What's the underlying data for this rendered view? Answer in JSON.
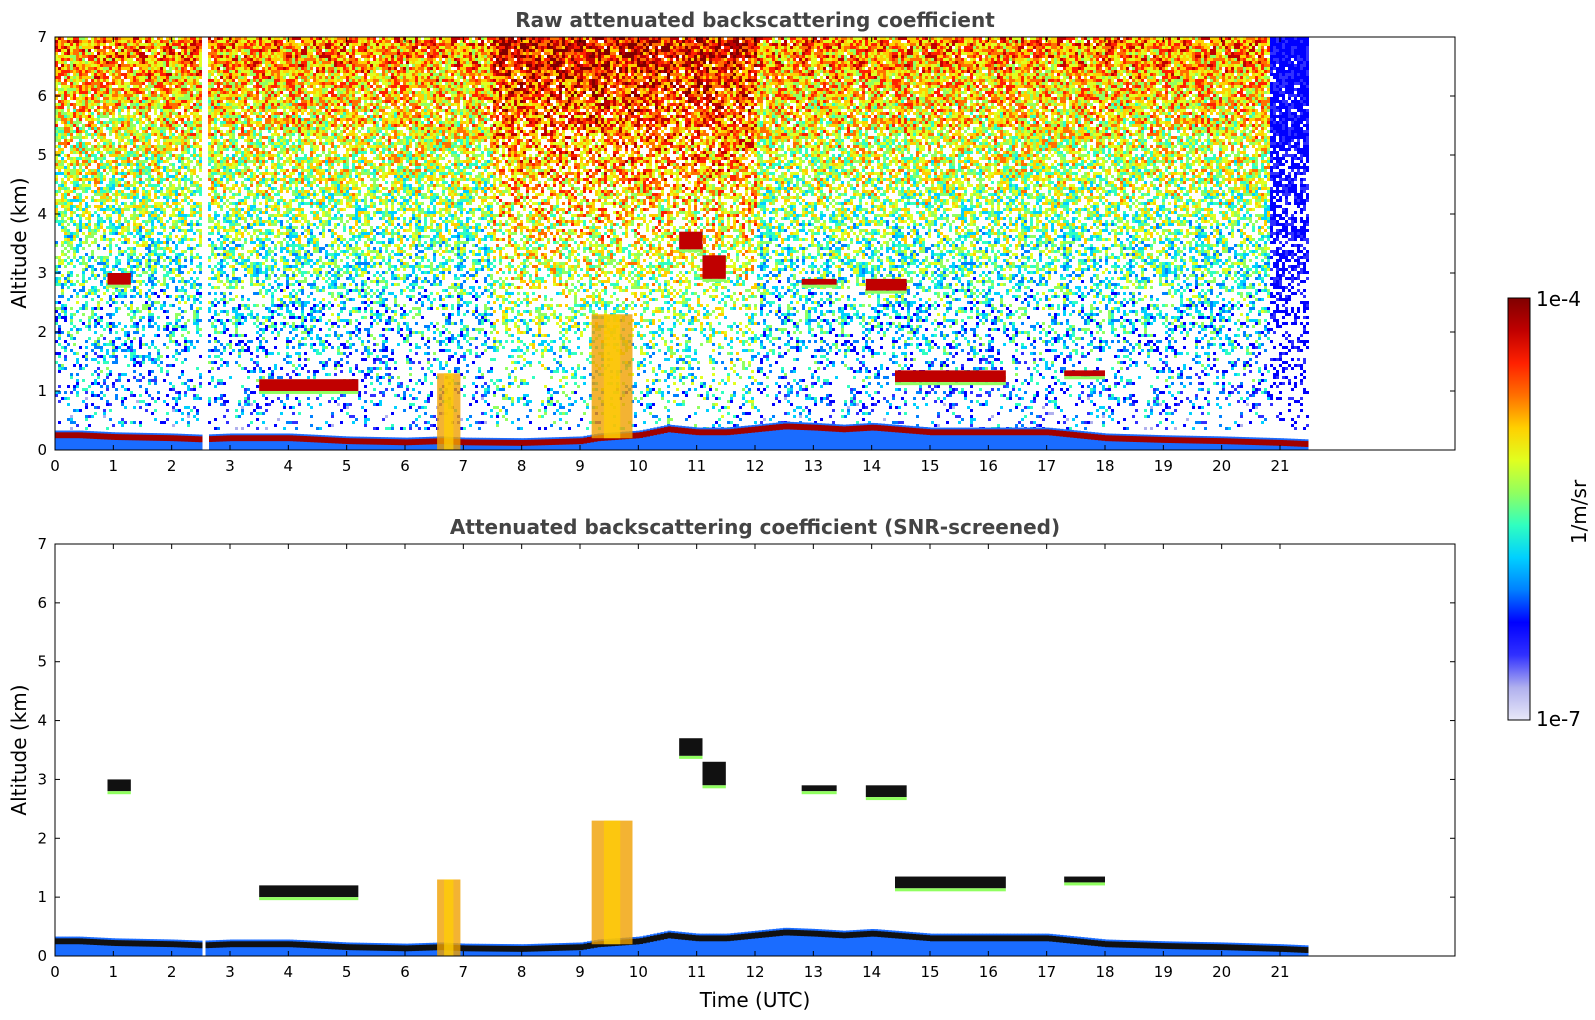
{
  "chart_data": [
    {
      "type": "heatmap",
      "title": "Raw attenuated backscattering coefficient",
      "xlabel": "",
      "ylabel": "Altitude (km)",
      "xlim": [
        0,
        24
      ],
      "ylim": [
        0,
        7
      ],
      "xticks": [
        "0",
        "1",
        "2",
        "3",
        "4",
        "5",
        "6",
        "7",
        "8",
        "9",
        "10",
        "11",
        "12",
        "13",
        "14",
        "15",
        "16",
        "17",
        "18",
        "19",
        "20",
        "21"
      ],
      "yticks": [
        "0",
        "1",
        "2",
        "3",
        "4",
        "5",
        "6",
        "7"
      ],
      "data_extent_hours": [
        0,
        21.45
      ],
      "grid": false,
      "boundary_layer": {
        "time": [
          0.0,
          0.4,
          1.0,
          2.0,
          2.5,
          3.0,
          4.0,
          5.0,
          6.0,
          6.6,
          7.0,
          8.0,
          9.0,
          9.3,
          10.0,
          10.5,
          11.0,
          11.5,
          12.0,
          12.5,
          13.0,
          13.5,
          14.0,
          15.0,
          16.0,
          17.0,
          18.0,
          19.0,
          20.0,
          21.0,
          21.45
        ],
        "altitude_km": [
          0.25,
          0.25,
          0.22,
          0.2,
          0.18,
          0.2,
          0.2,
          0.15,
          0.13,
          0.15,
          0.13,
          0.12,
          0.15,
          0.2,
          0.25,
          0.35,
          0.3,
          0.3,
          0.35,
          0.4,
          0.38,
          0.35,
          0.38,
          0.3,
          0.3,
          0.3,
          0.2,
          0.17,
          0.15,
          0.12,
          0.1
        ]
      },
      "cloud_layers": [
        {
          "t0": 0.9,
          "t1": 1.3,
          "base_km": 2.8,
          "top_km": 3.0
        },
        {
          "t0": 3.5,
          "t1": 5.2,
          "base_km": 1.0,
          "top_km": 1.2
        },
        {
          "t0": 6.55,
          "t1": 6.95,
          "base_km": 0.0,
          "top_km": 1.3
        },
        {
          "t0": 9.2,
          "t1": 9.9,
          "base_km": 0.2,
          "top_km": 2.3
        },
        {
          "t0": 10.7,
          "t1": 11.1,
          "base_km": 3.4,
          "top_km": 3.7
        },
        {
          "t0": 11.1,
          "t1": 11.5,
          "base_km": 2.9,
          "top_km": 3.3
        },
        {
          "t0": 12.8,
          "t1": 13.4,
          "base_km": 2.8,
          "top_km": 2.9
        },
        {
          "t0": 13.9,
          "t1": 14.6,
          "base_km": 2.7,
          "top_km": 2.9
        },
        {
          "t0": 14.4,
          "t1": 16.3,
          "base_km": 1.15,
          "top_km": 1.35
        },
        {
          "t0": 17.3,
          "t1": 18.0,
          "base_km": 1.25,
          "top_km": 1.35
        }
      ]
    },
    {
      "type": "heatmap",
      "title": "Attenuated backscattering coefficient (SNR-screened)",
      "xlabel": "Time (UTC)",
      "ylabel": "Altitude (km)",
      "xlim": [
        0,
        24
      ],
      "ylim": [
        0,
        7
      ],
      "xticks": [
        "0",
        "1",
        "2",
        "3",
        "4",
        "5",
        "6",
        "7",
        "8",
        "9",
        "10",
        "11",
        "12",
        "13",
        "14",
        "15",
        "16",
        "17",
        "18",
        "19",
        "20",
        "21"
      ],
      "yticks": [
        "0",
        "1",
        "2",
        "3",
        "4",
        "5",
        "6",
        "7"
      ],
      "data_extent_hours": [
        0,
        21.45
      ],
      "grid": false
    }
  ],
  "colorbar": {
    "label": "1/m/sr",
    "max_label": "1e-4",
    "min_label": "1e-7",
    "scale": "log",
    "colormap": "jet",
    "colors": [
      "#e8e8f8",
      "#b0b0ee",
      "#3030ff",
      "#0000ff",
      "#0080ff",
      "#00d0ff",
      "#30ffc0",
      "#90ff60",
      "#e0ff20",
      "#ffd000",
      "#ff7000",
      "#ff2000",
      "#c00000",
      "#800000"
    ]
  }
}
